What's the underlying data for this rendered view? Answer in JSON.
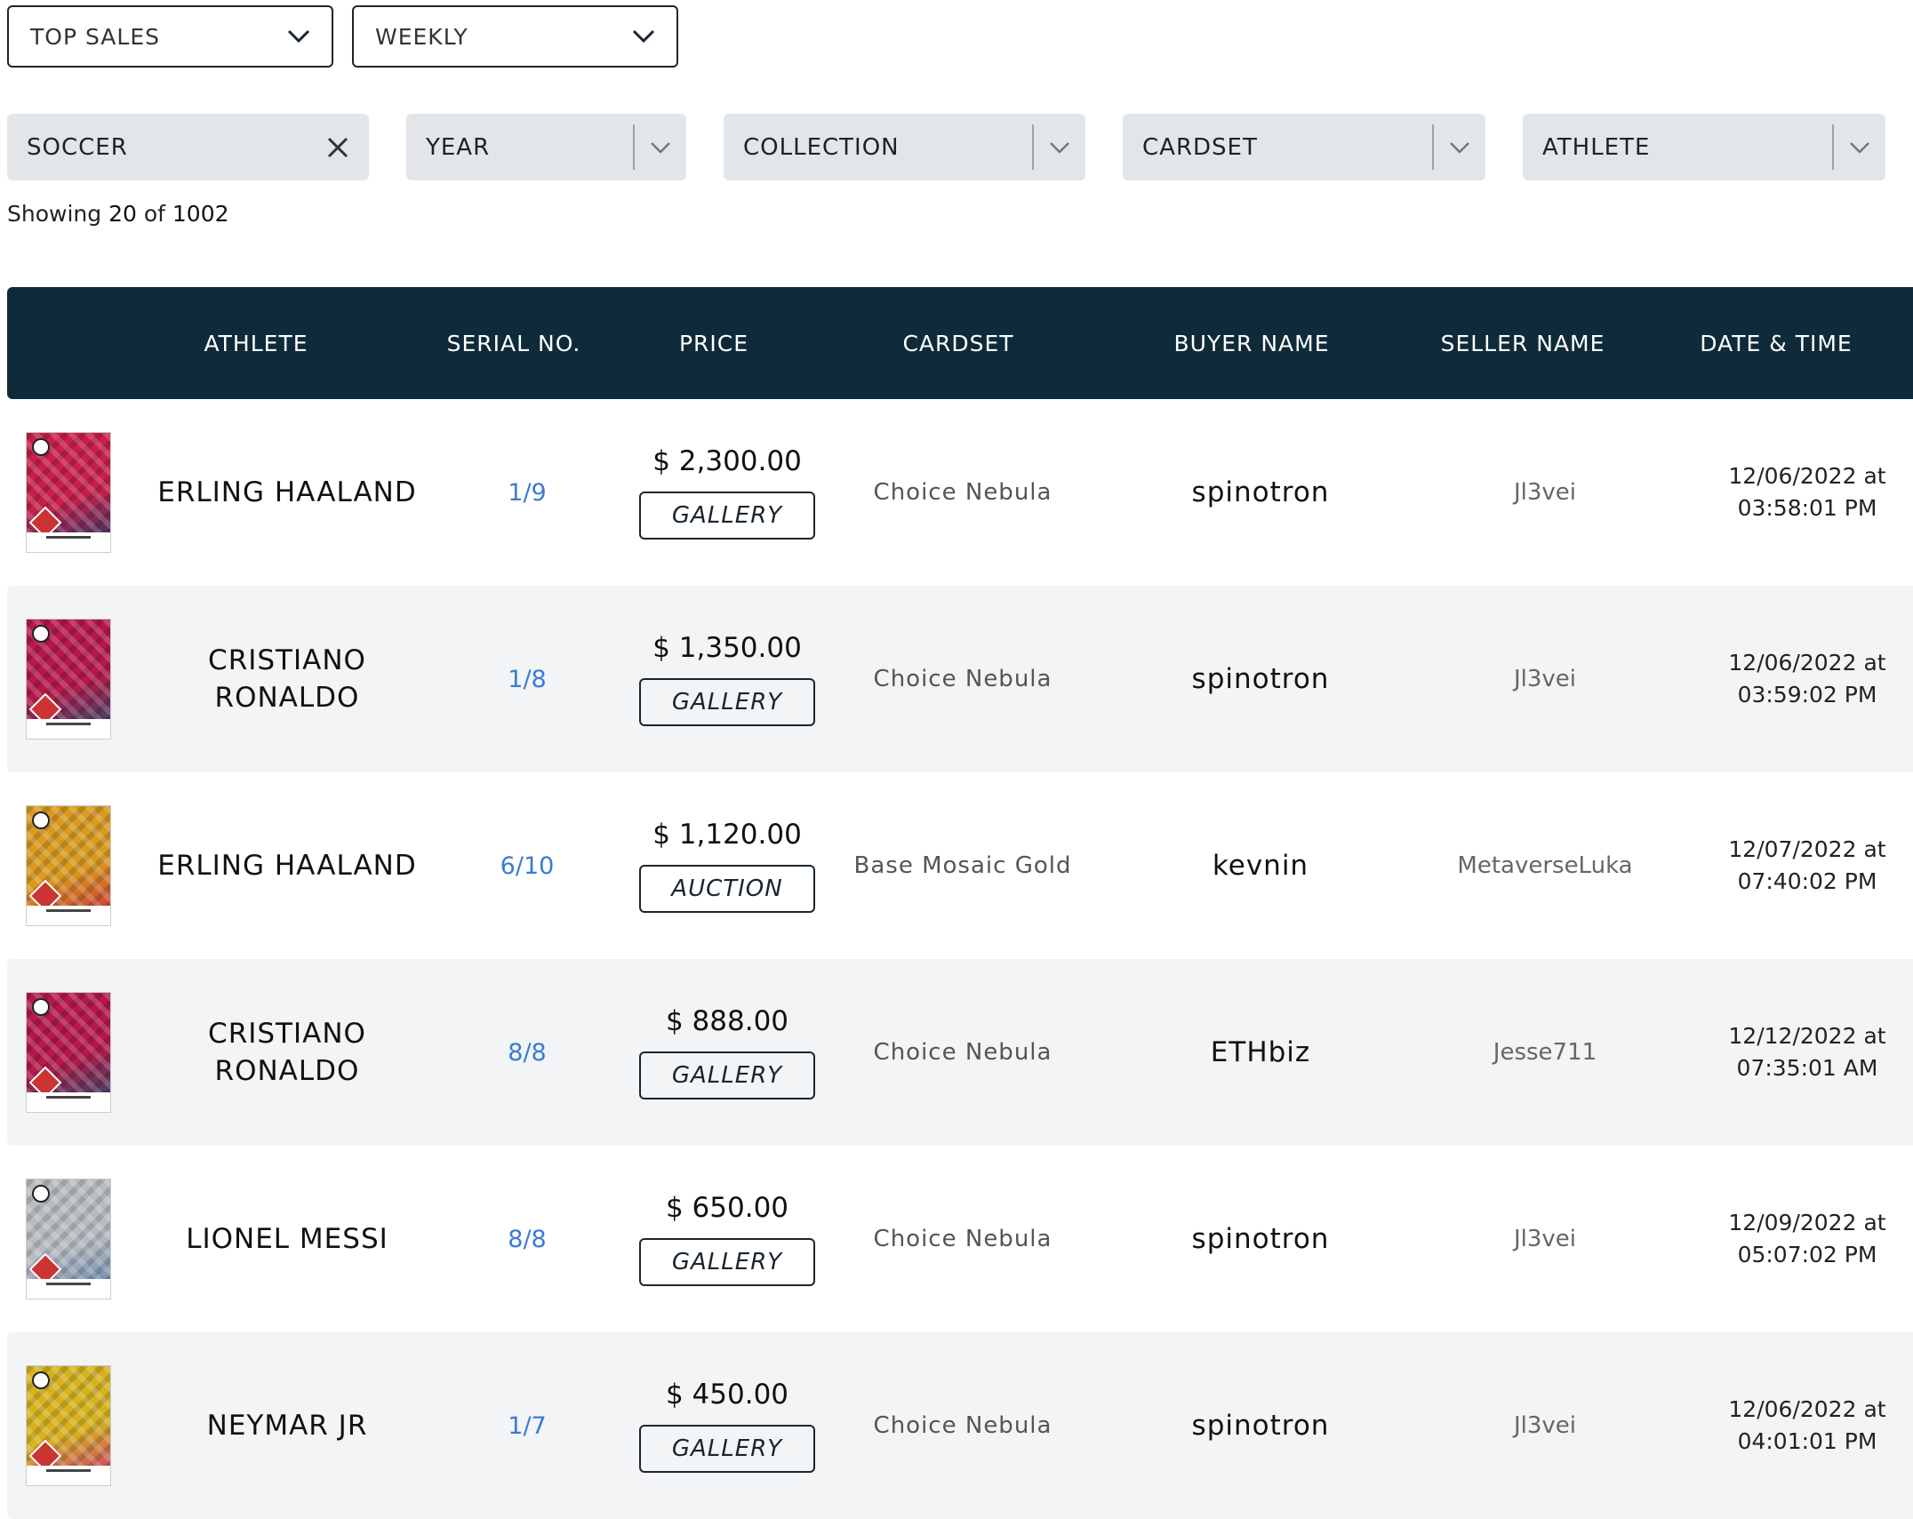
{
  "top_filters": {
    "sort": "TOP SALES",
    "period": "WEEKLY"
  },
  "filters": {
    "sport": "SOCCER",
    "year": "YEAR",
    "collection": "COLLECTION",
    "cardset": "CARDSET",
    "athlete": "ATHLETE"
  },
  "showing": {
    "prefix": "Showing",
    "count": "20",
    "of": "of",
    "total": "1002"
  },
  "table": {
    "headers": [
      "ATHLETE",
      "SERIAL NO.",
      "PRICE",
      "CARDSET",
      "BUYER NAME",
      "SELLER NAME",
      "DATE & TIME"
    ],
    "rows": [
      {
        "athlete": [
          "ERLING HAALAND"
        ],
        "serial": "1/9",
        "price": "$ 2,300.00",
        "badge": "GALLERY",
        "cardset": "Choice Nebula",
        "buyer": "spinotron",
        "seller": "Jl3vei",
        "date": "12/06/2022 at",
        "time": "03:58:01 PM",
        "card_colors": [
          "#c81f4a",
          "#1b3b6a"
        ]
      },
      {
        "athlete": [
          "CRISTIANO",
          "RONALDO"
        ],
        "serial": "1/8",
        "price": "$ 1,350.00",
        "badge": "GALLERY",
        "cardset": "Choice Nebula",
        "buyer": "spinotron",
        "seller": "Jl3vei",
        "date": "12/06/2022 at",
        "time": "03:59:02 PM",
        "card_colors": [
          "#b5184a",
          "#1d4f6e"
        ]
      },
      {
        "athlete": [
          "ERLING HAALAND"
        ],
        "serial": "6/10",
        "price": "$ 1,120.00",
        "badge": "AUCTION",
        "cardset": "Base Mosaic Gold",
        "buyer": "kevnin",
        "seller": "MetaverseLuka",
        "date": "12/07/2022 at",
        "time": "07:40:02 PM",
        "card_colors": [
          "#d99a1e",
          "#c8213a"
        ]
      },
      {
        "athlete": [
          "CRISTIANO",
          "RONALDO"
        ],
        "serial": "8/8",
        "price": "$ 888.00",
        "badge": "GALLERY",
        "cardset": "Choice Nebula",
        "buyer": "ETHbiz",
        "seller": "Jesse711",
        "date": "12/12/2022 at",
        "time": "07:35:01 AM",
        "card_colors": [
          "#b5184a",
          "#1d4f6e"
        ]
      },
      {
        "athlete": [
          "LIONEL MESSI"
        ],
        "serial": "8/8",
        "price": "$ 650.00",
        "badge": "GALLERY",
        "cardset": "Choice Nebula",
        "buyer": "spinotron",
        "seller": "Jl3vei",
        "date": "12/09/2022 at",
        "time": "05:07:02 PM",
        "card_colors": [
          "#b8bcc2",
          "#5d7fa8"
        ]
      },
      {
        "athlete": [
          "NEYMAR JR"
        ],
        "serial": "1/7",
        "price": "$ 450.00",
        "badge": "GALLERY",
        "cardset": "Choice Nebula",
        "buyer": "spinotron",
        "seller": "Jl3vei",
        "date": "12/06/2022 at",
        "time": "04:01:01 PM",
        "card_colors": [
          "#d7b21f",
          "#c82a7a"
        ]
      }
    ]
  },
  "icons": {
    "dropdown": "chevron-down-icon",
    "clear": "close-icon"
  },
  "colors": {
    "header_bg": "#0f2b3a",
    "serial": "#3a7bd5",
    "alt_row": "#f2f4f5",
    "filter_bg": "#e3e6e9"
  }
}
